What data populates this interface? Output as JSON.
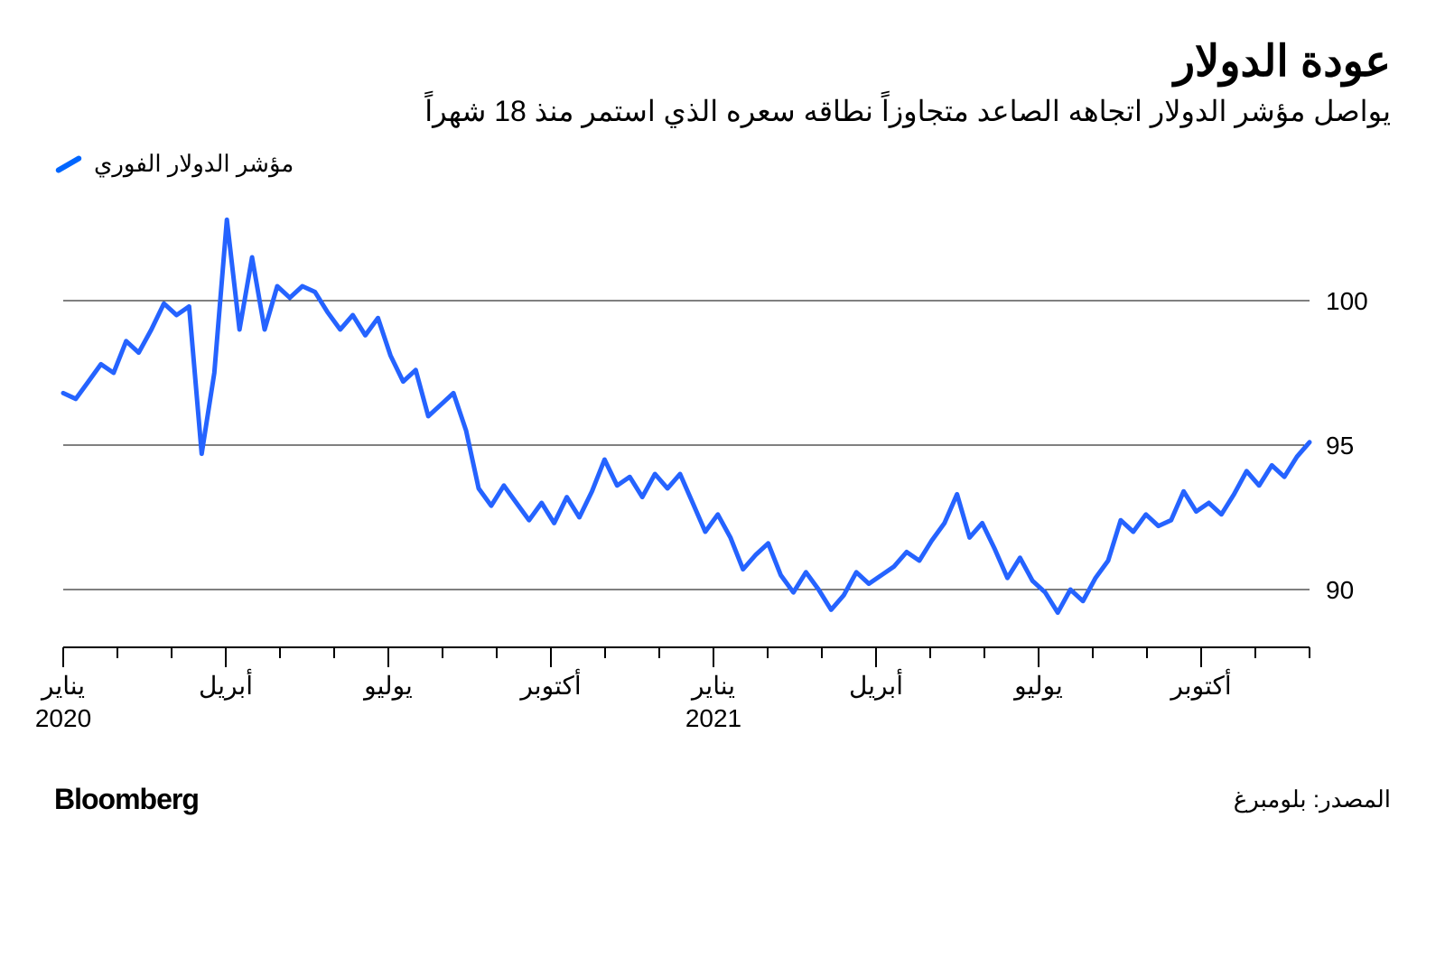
{
  "header": {
    "title": "عودة الدولار",
    "subtitle": "يواصل مؤشر الدولار اتجاهه الصاعد متجاوزاً نطاقه سعره الذي استمر منذ 18 شهراً"
  },
  "legend": {
    "label": "مؤشر الدولار الفوري",
    "color": "#2563ff"
  },
  "chart": {
    "type": "line",
    "line_color": "#2563ff",
    "line_width": 5,
    "background_color": "#ffffff",
    "grid_color": "#000000",
    "ylim": [
      88,
      103
    ],
    "yticks": [
      90,
      95,
      100
    ],
    "ytick_fontsize": 28,
    "xtick_fontsize": 28,
    "x_axis": {
      "ticks": [
        {
          "idx": 0,
          "label": "يناير",
          "year": "2020"
        },
        {
          "idx": 3,
          "label": "أبريل"
        },
        {
          "idx": 6,
          "label": "يوليو"
        },
        {
          "idx": 9,
          "label": "أكتوبر"
        },
        {
          "idx": 12,
          "label": "يناير",
          "year": "2021"
        },
        {
          "idx": 15,
          "label": "أبريل"
        },
        {
          "idx": 18,
          "label": "يوليو"
        },
        {
          "idx": 21,
          "label": "أكتوبر"
        }
      ],
      "n_points": 100
    },
    "values": [
      96.8,
      96.6,
      97.2,
      97.8,
      97.5,
      98.6,
      98.2,
      99.0,
      99.9,
      99.5,
      99.8,
      94.7,
      97.5,
      102.8,
      99.0,
      101.5,
      99.0,
      100.5,
      100.1,
      100.5,
      100.3,
      99.6,
      99.0,
      99.5,
      98.8,
      99.4,
      98.1,
      97.2,
      97.6,
      96.0,
      96.4,
      96.8,
      95.5,
      93.5,
      92.9,
      93.6,
      93.0,
      92.4,
      93.0,
      92.3,
      93.2,
      92.5,
      93.4,
      94.5,
      93.6,
      93.9,
      93.2,
      94.0,
      93.5,
      94.0,
      93.0,
      92.0,
      92.6,
      91.8,
      90.7,
      91.2,
      91.6,
      90.5,
      89.9,
      90.6,
      90.0,
      89.3,
      89.8,
      90.6,
      90.2,
      90.5,
      90.8,
      91.3,
      91.0,
      91.7,
      92.3,
      93.3,
      91.8,
      92.3,
      91.4,
      90.4,
      91.1,
      90.3,
      89.9,
      89.2,
      90.0,
      89.6,
      90.4,
      91.0,
      92.4,
      92.0,
      92.6,
      92.2,
      92.4,
      93.4,
      92.7,
      93.0,
      92.6,
      93.3,
      94.1,
      93.6,
      94.3,
      93.9,
      94.6,
      95.1
    ]
  },
  "footer": {
    "brand": "Bloomberg",
    "source": "المصدر: بلومبرغ"
  }
}
